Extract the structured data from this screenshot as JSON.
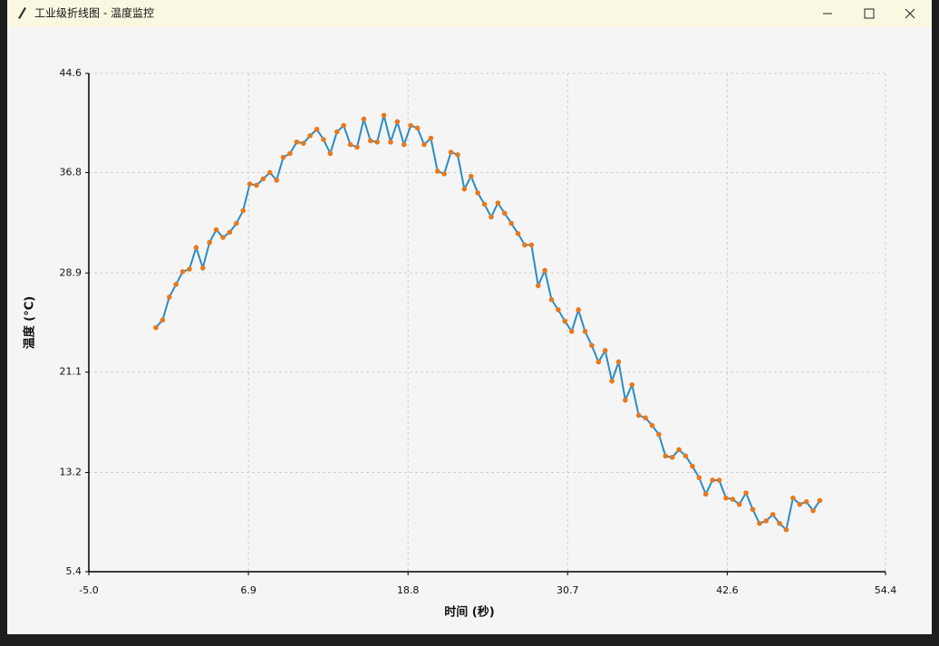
{
  "window_title": "工业级折线图 - 温度监控",
  "chart_data": {
    "type": "line",
    "xlabel": "时间 (秒)",
    "ylabel": "温度 (°C)",
    "x": [
      0,
      0.5,
      1,
      1.5,
      2,
      2.5,
      3,
      3.5,
      4,
      4.5,
      5,
      5.5,
      6,
      6.5,
      7,
      7.5,
      8,
      8.5,
      9,
      9.5,
      10,
      10.5,
      11,
      11.5,
      12,
      12.5,
      13,
      13.5,
      14,
      14.5,
      15,
      15.5,
      16,
      16.5,
      17,
      17.5,
      18,
      18.5,
      19,
      19.5,
      20,
      20.5,
      21,
      21.5,
      22,
      22.5,
      23,
      23.5,
      24,
      24.5,
      25,
      25.5,
      26,
      26.5,
      27,
      27.5,
      28,
      28.5,
      29,
      29.5,
      30,
      30.5,
      31,
      31.5,
      32,
      32.5,
      33,
      33.5,
      34,
      34.5,
      35,
      35.5,
      36,
      36.5,
      37,
      37.5,
      38,
      38.5,
      39,
      39.5,
      40,
      40.5,
      41,
      41.5,
      42,
      42.5,
      43,
      43.5,
      44,
      44.5,
      45,
      45.5,
      46,
      46.5,
      47,
      47.5,
      48,
      48.5,
      49,
      49.5
    ],
    "values": [
      24.6,
      25.2,
      27.0,
      28.0,
      29.0,
      29.2,
      30.9,
      29.3,
      31.3,
      32.3,
      31.7,
      32.1,
      32.8,
      33.8,
      35.9,
      35.8,
      36.3,
      36.8,
      36.2,
      38.0,
      38.3,
      39.2,
      39.1,
      39.7,
      40.2,
      39.4,
      38.3,
      40.0,
      40.5,
      39.0,
      38.8,
      41.0,
      39.3,
      39.2,
      41.3,
      39.2,
      40.8,
      39.0,
      40.5,
      40.3,
      39.0,
      39.5,
      36.9,
      36.7,
      38.4,
      38.2,
      35.5,
      36.5,
      35.2,
      34.3,
      33.3,
      34.4,
      33.6,
      32.8,
      32.0,
      31.1,
      31.1,
      27.9,
      29.1,
      26.8,
      26.0,
      25.1,
      24.3,
      26.0,
      24.3,
      23.2,
      21.9,
      22.8,
      20.4,
      21.9,
      18.9,
      20.1,
      17.7,
      17.5,
      16.9,
      16.2,
      14.5,
      14.4,
      15.0,
      14.5,
      13.7,
      12.8,
      11.5,
      12.6,
      12.6,
      11.2,
      11.1,
      10.7,
      11.6,
      10.3,
      9.2,
      9.4,
      9.9,
      9.2,
      8.7,
      11.2,
      10.7,
      10.9,
      10.2,
      11.0
    ],
    "color": "#2b8cc4",
    "marker_color": "#e8791c",
    "xlim": [
      -5,
      54.4
    ],
    "xticks": [
      {
        "value": -5,
        "label": "-5.0"
      },
      6.9,
      18.8,
      30.7,
      42.6,
      54.4
    ],
    "ylim": [
      5.4,
      44.6
    ],
    "yticks": [
      5.4,
      13.2,
      21.1,
      28.9,
      36.8,
      44.6
    ],
    "grid": true
  }
}
